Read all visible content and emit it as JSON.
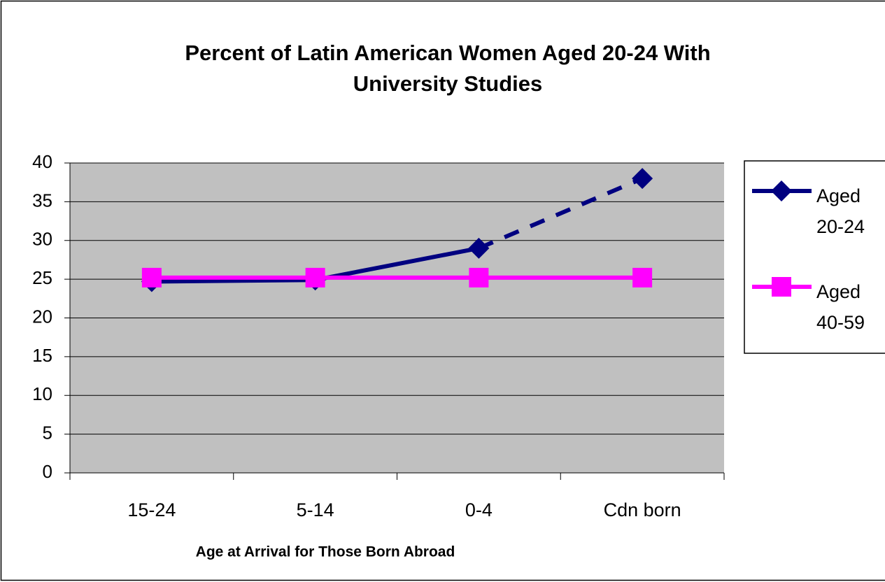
{
  "chart_data": {
    "type": "line",
    "title": "Percent of Latin American Women Aged 20-24  With University Studies",
    "x_label": "Age at Arrival for Those Born Abroad",
    "categories": [
      "15-24",
      "5-14",
      "0-4",
      "Cdn born"
    ],
    "series": [
      {
        "name": "Aged 20-24",
        "color": "#000080",
        "marker": "diamond",
        "values": [
          24.7,
          24.9,
          29,
          38
        ],
        "segment_styles": [
          "solid",
          "solid",
          "dashed"
        ]
      },
      {
        "name": "Aged 40-59",
        "color": "#ff00ff",
        "marker": "square",
        "values": [
          25.2,
          25.2,
          25.2,
          25.2
        ],
        "segment_styles": [
          "solid",
          "solid",
          "solid"
        ]
      }
    ],
    "ylim": [
      0,
      40
    ],
    "yticks": [
      0,
      5,
      10,
      15,
      20,
      25,
      30,
      35,
      40
    ],
    "grid": true,
    "plot_background": "#c0c0c0",
    "legend": "right"
  }
}
